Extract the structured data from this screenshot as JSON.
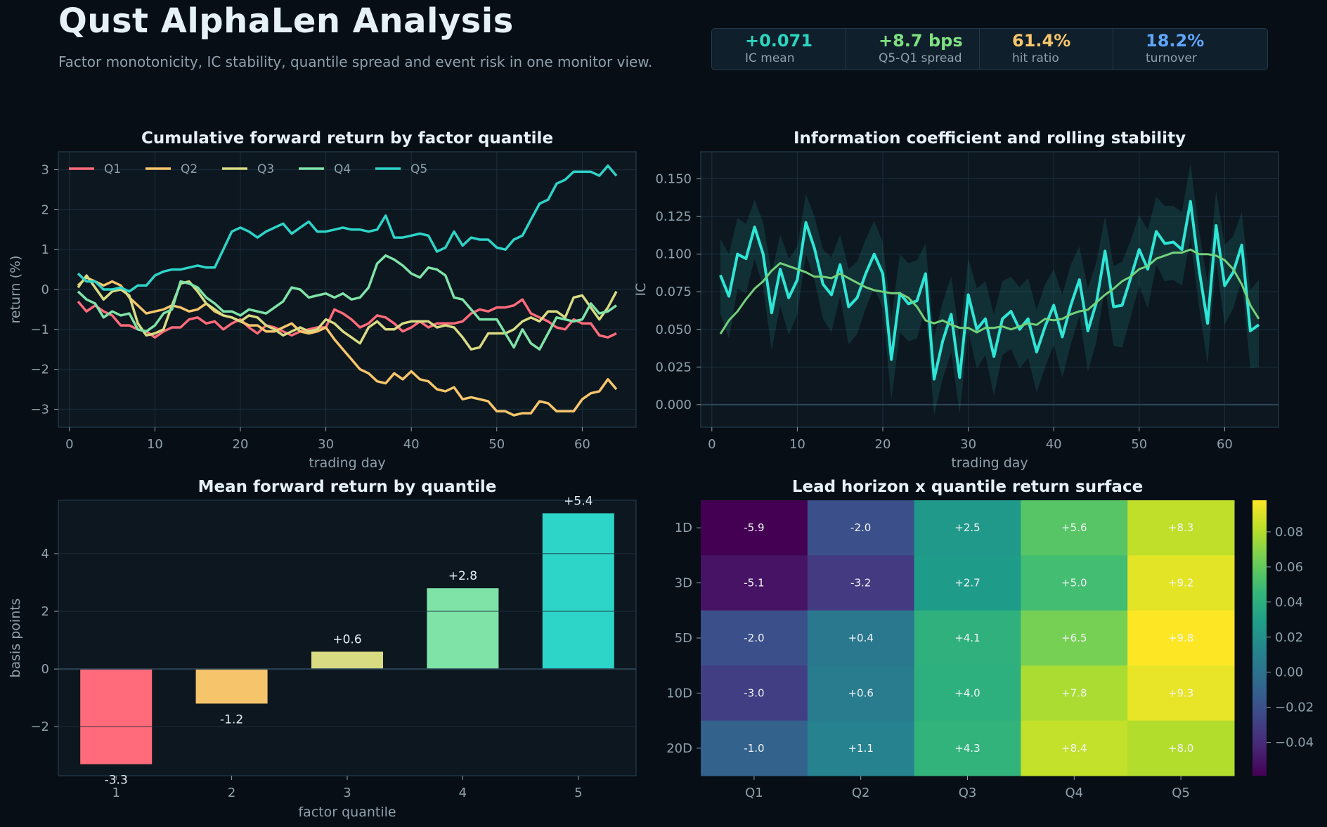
{
  "header": {
    "title": "Qust AlphaLen Analysis",
    "subtitle": "Factor monotonicity, IC stability, quantile spread and event risk in one monitor view."
  },
  "kpis": [
    {
      "value": "+0.071",
      "label": "IC mean",
      "color": "#2dd4bf"
    },
    {
      "value": "+8.7 bps",
      "label": "Q5-Q1 spread",
      "color": "#7ee081"
    },
    {
      "value": "61.4%",
      "label": "hit ratio",
      "color": "#f6c56b"
    },
    {
      "value": "18.2%",
      "label": "turnover",
      "color": "#60a5fa"
    }
  ],
  "colors": {
    "background": "#070e15",
    "panel": "#0d1720",
    "grid": "#1d2f3c",
    "Q1": "#ff6b7a",
    "Q2": "#f6c56b",
    "Q3": "#d8db82",
    "Q4": "#7fe3a8",
    "Q5": "#2dd4c8",
    "ic_line": "#2ee6d6",
    "ic_rolling": "#72d17a"
  },
  "chart_data": [
    {
      "type": "line",
      "title": "Cumulative forward return by factor quantile",
      "xlabel": "trading day",
      "ylabel": "return (%)",
      "xlim": [
        -1.3,
        66.3
      ],
      "ylim": [
        -3.45,
        3.45
      ],
      "xticks": [
        0,
        10,
        20,
        30,
        40,
        50,
        60
      ],
      "yticks": [
        -3,
        -2,
        -1,
        0,
        1,
        2,
        3
      ],
      "ytick_labels": [
        "−3",
        "−2",
        "−1",
        "0",
        "1",
        "2",
        "3"
      ],
      "legend_position": "top-left",
      "grid": true,
      "x": [
        1,
        2,
        3,
        4,
        5,
        6,
        7,
        8,
        9,
        10,
        11,
        12,
        13,
        14,
        15,
        16,
        17,
        18,
        19,
        20,
        21,
        22,
        23,
        24,
        25,
        26,
        27,
        28,
        29,
        30,
        31,
        32,
        33,
        34,
        35,
        36,
        37,
        38,
        39,
        40,
        41,
        42,
        43,
        44,
        45,
        46,
        47,
        48,
        49,
        50,
        51,
        52,
        53,
        54,
        55,
        56,
        57,
        58,
        59,
        60,
        61,
        62,
        63,
        64
      ],
      "series": [
        {
          "name": "Q1",
          "color": "#ff6b7a",
          "values": [
            -0.3,
            -0.55,
            -0.4,
            -0.55,
            -0.65,
            -0.9,
            -0.9,
            -1.0,
            -1.05,
            -1.2,
            -1.05,
            -0.95,
            -0.95,
            -0.75,
            -0.7,
            -0.85,
            -0.8,
            -1.0,
            -0.85,
            -0.75,
            -0.95,
            -1.1,
            -0.9,
            -0.95,
            -1.05,
            -1.15,
            -1.05,
            -1.0,
            -0.95,
            -0.95,
            -0.5,
            -0.6,
            -0.75,
            -0.95,
            -0.85,
            -0.65,
            -0.7,
            -0.85,
            -1.05,
            -0.95,
            -0.8,
            -0.95,
            -0.85,
            -0.85,
            -0.85,
            -0.8,
            -0.6,
            -0.5,
            -0.55,
            -0.45,
            -0.45,
            -0.4,
            -0.25,
            -0.6,
            -0.7,
            -0.8,
            -0.95,
            -1.0,
            -0.75,
            -0.85,
            -0.85,
            -1.15,
            -1.2,
            -1.1
          ]
        },
        {
          "name": "Q2",
          "color": "#f6c56b",
          "values": [
            0.1,
            0.3,
            0.2,
            0.1,
            0.2,
            0.1,
            -0.2,
            -0.4,
            -0.6,
            -0.55,
            -0.5,
            -0.4,
            -0.45,
            -0.55,
            -0.5,
            -0.35,
            -0.55,
            -0.65,
            -0.7,
            -0.8,
            -0.9,
            -0.9,
            -1.05,
            -1.05,
            -0.95,
            -0.85,
            -1.05,
            -1.1,
            -1.05,
            -0.95,
            -1.25,
            -1.5,
            -1.75,
            -2.0,
            -2.1,
            -2.3,
            -2.35,
            -2.1,
            -2.25,
            -2.05,
            -2.25,
            -2.3,
            -2.5,
            -2.55,
            -2.45,
            -2.75,
            -2.7,
            -2.75,
            -2.8,
            -3.05,
            -3.05,
            -3.15,
            -3.1,
            -3.1,
            -2.8,
            -2.85,
            -3.05,
            -3.05,
            -3.05,
            -2.75,
            -2.6,
            -2.55,
            -2.25,
            -2.5
          ]
        },
        {
          "name": "Q3",
          "color": "#d8db82",
          "values": [
            0.05,
            0.35,
            0.05,
            -0.25,
            -0.05,
            0.0,
            -0.15,
            -0.85,
            -1.15,
            -1.1,
            -1.0,
            -0.4,
            0.15,
            0.2,
            -0.05,
            -0.35,
            -0.5,
            -0.65,
            -0.7,
            -0.8,
            -0.65,
            -0.7,
            -0.9,
            -1.0,
            -1.15,
            -1.05,
            -0.95,
            -1.05,
            -1.0,
            -0.75,
            -0.85,
            -1.05,
            -1.2,
            -1.35,
            -0.95,
            -0.8,
            -1.0,
            -1.0,
            -0.85,
            -0.8,
            -0.8,
            -0.8,
            -0.95,
            -0.9,
            -0.95,
            -1.2,
            -1.5,
            -1.45,
            -1.1,
            -1.1,
            -1.1,
            -1.0,
            -0.8,
            -0.7,
            -0.8,
            -0.55,
            -0.55,
            -0.7,
            -0.2,
            -0.15,
            -0.45,
            -0.75,
            -0.45,
            -0.05
          ]
        },
        {
          "name": "Q4",
          "color": "#7fe3a8",
          "values": [
            -0.05,
            -0.25,
            -0.35,
            -0.7,
            -0.55,
            -0.65,
            -0.6,
            -1.0,
            -1.05,
            -0.9,
            -0.6,
            -0.5,
            0.2,
            0.15,
            0.05,
            -0.2,
            -0.35,
            -0.55,
            -0.55,
            -0.65,
            -0.5,
            -0.55,
            -0.6,
            -0.45,
            -0.3,
            0.05,
            0.0,
            -0.2,
            -0.15,
            -0.1,
            -0.2,
            -0.1,
            -0.25,
            -0.2,
            0.05,
            0.65,
            0.85,
            0.75,
            0.6,
            0.4,
            0.3,
            0.55,
            0.5,
            0.35,
            -0.2,
            -0.25,
            -0.5,
            -0.75,
            -0.75,
            -0.75,
            -1.1,
            -1.45,
            -1.0,
            -1.35,
            -1.5,
            -1.1,
            -0.7,
            -0.75,
            -0.8,
            -0.75,
            -0.35,
            -0.6,
            -0.55,
            -0.4
          ]
        },
        {
          "name": "Q5",
          "color": "#2dd4c8",
          "values": [
            0.4,
            0.2,
            0.2,
            0.0,
            0.0,
            0.05,
            -0.05,
            0.1,
            0.1,
            0.35,
            0.45,
            0.5,
            0.5,
            0.55,
            0.6,
            0.55,
            0.55,
            1.0,
            1.45,
            1.55,
            1.45,
            1.3,
            1.45,
            1.55,
            1.65,
            1.4,
            1.55,
            1.7,
            1.45,
            1.45,
            1.5,
            1.55,
            1.5,
            1.5,
            1.45,
            1.5,
            1.85,
            1.3,
            1.3,
            1.35,
            1.4,
            1.35,
            0.95,
            1.05,
            1.45,
            1.1,
            1.3,
            1.25,
            1.25,
            1.05,
            1.0,
            1.25,
            1.35,
            1.75,
            2.15,
            2.25,
            2.65,
            2.75,
            2.95,
            2.95,
            2.95,
            2.85,
            3.1,
            2.85
          ]
        }
      ]
    },
    {
      "type": "line",
      "title": "Information coefficient and rolling stability",
      "xlabel": "trading day",
      "ylabel": "IC",
      "xlim": [
        -1.3,
        66.3
      ],
      "ylim": [
        -0.015,
        0.168
      ],
      "xticks": [
        0,
        10,
        20,
        30,
        40,
        50,
        60
      ],
      "yticks": [
        0.0,
        0.025,
        0.05,
        0.075,
        0.1,
        0.125,
        0.15
      ],
      "ytick_labels": [
        "0.000",
        "0.025",
        "0.050",
        "0.075",
        "0.100",
        "0.125",
        "0.150"
      ],
      "grid": true,
      "zero_line": true,
      "x": [
        1,
        2,
        3,
        4,
        5,
        6,
        7,
        8,
        9,
        10,
        11,
        12,
        13,
        14,
        15,
        16,
        17,
        18,
        19,
        20,
        21,
        22,
        23,
        24,
        25,
        26,
        27,
        28,
        29,
        30,
        31,
        32,
        33,
        34,
        35,
        36,
        37,
        38,
        39,
        40,
        41,
        42,
        43,
        44,
        45,
        46,
        47,
        48,
        49,
        50,
        51,
        52,
        53,
        54,
        55,
        56,
        57,
        58,
        59,
        60,
        61,
        62,
        63,
        64
      ],
      "series": [
        {
          "name": "IC",
          "color": "#2ee6d6",
          "values": [
            0.086,
            0.072,
            0.1,
            0.097,
            0.118,
            0.1,
            0.061,
            0.09,
            0.071,
            0.083,
            0.121,
            0.104,
            0.08,
            0.073,
            0.093,
            0.065,
            0.071,
            0.087,
            0.1,
            0.087,
            0.03,
            0.074,
            0.067,
            0.069,
            0.087,
            0.017,
            0.042,
            0.06,
            0.018,
            0.073,
            0.05,
            0.057,
            0.032,
            0.057,
            0.062,
            0.05,
            0.057,
            0.035,
            0.052,
            0.066,
            0.045,
            0.066,
            0.083,
            0.049,
            0.068,
            0.102,
            0.065,
            0.066,
            0.084,
            0.103,
            0.09,
            0.115,
            0.107,
            0.108,
            0.103,
            0.135,
            0.09,
            0.054,
            0.119,
            0.079,
            0.088,
            0.106,
            0.049,
            0.053
          ]
        },
        {
          "name": "rolling",
          "color": "#72d17a",
          "values": [
            0.047,
            0.056,
            0.062,
            0.07,
            0.077,
            0.082,
            0.089,
            0.094,
            0.092,
            0.09,
            0.088,
            0.085,
            0.085,
            0.084,
            0.087,
            0.084,
            0.081,
            0.078,
            0.076,
            0.075,
            0.074,
            0.074,
            0.071,
            0.065,
            0.056,
            0.054,
            0.056,
            0.053,
            0.051,
            0.051,
            0.048,
            0.051,
            0.051,
            0.052,
            0.05,
            0.052,
            0.054,
            0.053,
            0.057,
            0.056,
            0.057,
            0.06,
            0.062,
            0.063,
            0.068,
            0.073,
            0.077,
            0.082,
            0.085,
            0.09,
            0.092,
            0.097,
            0.099,
            0.101,
            0.101,
            0.103,
            0.1,
            0.1,
            0.099,
            0.096,
            0.09,
            0.08,
            0.066,
            0.057
          ]
        },
        {
          "name": "band",
          "color": "#2ee6d6",
          "upper": [
            0.11,
            0.1,
            0.124,
            0.12,
            0.136,
            0.121,
            0.087,
            0.113,
            0.097,
            0.105,
            0.14,
            0.125,
            0.103,
            0.098,
            0.113,
            0.09,
            0.095,
            0.11,
            0.122,
            0.108,
            0.057,
            0.1,
            0.094,
            0.096,
            0.107,
            0.045,
            0.068,
            0.085,
            0.045,
            0.097,
            0.077,
            0.082,
            0.06,
            0.082,
            0.085,
            0.078,
            0.084,
            0.063,
            0.08,
            0.09,
            0.073,
            0.093,
            0.105,
            0.077,
            0.095,
            0.125,
            0.092,
            0.095,
            0.109,
            0.126,
            0.116,
            0.138,
            0.132,
            0.132,
            0.128,
            0.16,
            0.116,
            0.081,
            0.142,
            0.106,
            0.112,
            0.128,
            0.076,
            0.083
          ],
          "lower": [
            0.06,
            0.044,
            0.077,
            0.074,
            0.097,
            0.078,
            0.036,
            0.066,
            0.046,
            0.06,
            0.1,
            0.083,
            0.057,
            0.048,
            0.072,
            0.04,
            0.047,
            0.064,
            0.078,
            0.064,
            0.003,
            0.048,
            0.042,
            0.044,
            0.064,
            -0.007,
            0.017,
            0.035,
            -0.006,
            0.049,
            0.024,
            0.033,
            0.006,
            0.033,
            0.037,
            0.024,
            0.031,
            0.008,
            0.025,
            0.04,
            0.018,
            0.04,
            0.059,
            0.022,
            0.042,
            0.078,
            0.039,
            0.038,
            0.058,
            0.079,
            0.064,
            0.093,
            0.082,
            0.083,
            0.079,
            0.111,
            0.065,
            0.027,
            0.095,
            0.053,
            0.064,
            0.083,
            0.024,
            0.025
          ]
        }
      ]
    },
    {
      "type": "bar",
      "title": "Mean forward return by quantile",
      "xlabel": "factor quantile",
      "ylabel": "basis points",
      "categories": [
        "1",
        "2",
        "3",
        "4",
        "5"
      ],
      "values": [
        -3.3,
        -1.2,
        0.6,
        2.8,
        5.4
      ],
      "value_labels": [
        "-3.3",
        "-1.2",
        "+0.6",
        "+2.8",
        "+5.4"
      ],
      "colors": [
        "#ff6b7a",
        "#f6c56b",
        "#d8db82",
        "#7fe3a8",
        "#2dd4c8"
      ],
      "ylim": [
        -3.7,
        5.85
      ],
      "yticks": [
        -2,
        0,
        2,
        4
      ],
      "ytick_labels": [
        "−2",
        "0",
        "2",
        "4"
      ],
      "grid": true
    },
    {
      "type": "heatmap",
      "title": "Lead horizon x quantile return surface",
      "rows": [
        "1D",
        "3D",
        "5D",
        "10D",
        "20D"
      ],
      "columns": [
        "Q1",
        "Q2",
        "Q3",
        "Q4",
        "Q5"
      ],
      "values": [
        [
          -5.9,
          -2.0,
          2.5,
          5.6,
          8.3
        ],
        [
          -5.1,
          -3.2,
          2.7,
          5.0,
          9.2
        ],
        [
          -2.0,
          0.4,
          4.1,
          6.5,
          9.8
        ],
        [
          -3.0,
          0.6,
          4.0,
          7.8,
          9.3
        ],
        [
          -1.0,
          1.1,
          4.3,
          8.4,
          8.0
        ]
      ],
      "labels": [
        [
          "-5.9",
          "-2.0",
          "+2.5",
          "+5.6",
          "+8.3"
        ],
        [
          "-5.1",
          "-3.2",
          "+2.7",
          "+5.0",
          "+9.2"
        ],
        [
          "-2.0",
          "+0.4",
          "+4.1",
          "+6.5",
          "+9.8"
        ],
        [
          "-3.0",
          "+0.6",
          "+4.0",
          "+7.8",
          "+9.3"
        ],
        [
          "-1.0",
          "+1.1",
          "+4.3",
          "+8.4",
          "+8.0"
        ]
      ],
      "colorbar_range": [
        -0.059,
        0.098
      ],
      "colorbar_ticks": [
        -0.04,
        -0.02,
        0.0,
        0.02,
        0.04,
        0.06,
        0.08
      ],
      "colorbar_labels": [
        "−0.04",
        "−0.02",
        "0.00",
        "0.02",
        "0.04",
        "0.06",
        "0.08"
      ],
      "colormap": "viridis"
    }
  ]
}
